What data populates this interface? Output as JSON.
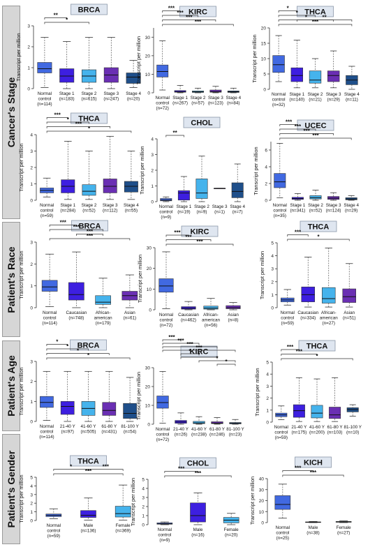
{
  "sections": [
    "Cancer's Stage",
    "Patient's Race",
    "Patient's Age",
    "Patient's Gender"
  ],
  "ylabel": "Transcript per million",
  "colors": {
    "normal": "#4169e1",
    "g1": "#3d1fe0",
    "g2": "#45b3ec",
    "g3": "#6a2fb3",
    "g4": "#1f4f8a",
    "g5": "#2a65a8",
    "white_lead": "#ffffff"
  },
  "chart_data": [
    {
      "type": "box",
      "title": "BRCA",
      "ylim": [
        0,
        3
      ],
      "yticks": [
        "0",
        "1",
        "2",
        "3"
      ],
      "categories": [
        [
          "Normal",
          "control",
          "(n=114)"
        ],
        [
          "Stage 1",
          "(n=183)"
        ],
        [
          "Stage 2",
          "(n=615)"
        ],
        [
          "Stage 3",
          "(n=247)"
        ],
        [
          "Stage 4",
          "(n=20)"
        ]
      ],
      "boxes": [
        [
          0.05,
          0.75,
          0.95,
          1.25,
          2.45
        ],
        [
          0.0,
          0.3,
          0.6,
          0.95,
          2.25
        ],
        [
          0.0,
          0.3,
          0.6,
          0.9,
          2.45
        ],
        [
          0.0,
          0.3,
          0.65,
          1.0,
          2.45
        ],
        [
          0.05,
          0.25,
          0.55,
          0.75,
          1.35
        ]
      ],
      "annotations": [
        "**",
        "*"
      ]
    },
    {
      "type": "box",
      "title": "KIRC",
      "ylim": [
        0,
        35
      ],
      "yticks": [
        "0",
        "10",
        "20",
        "30"
      ],
      "categories": [
        [
          "Normal",
          "control",
          "(n=72)"
        ],
        [
          "Stage 1",
          "(n=267)"
        ],
        [
          "Stage 2",
          "(n=57)"
        ],
        [
          "Stage 3",
          "(n=123)"
        ],
        [
          "Stage 4",
          "(n=84)"
        ]
      ],
      "boxes": [
        [
          1.5,
          8.5,
          11.5,
          15,
          28
        ],
        [
          0,
          0.3,
          0.6,
          1.2,
          4
        ],
        [
          0,
          0.2,
          0.5,
          1.0,
          2.5
        ],
        [
          0,
          0.3,
          0.6,
          1.5,
          3.5
        ],
        [
          0,
          0.2,
          0.5,
          1.0,
          2.5
        ]
      ],
      "annotations": [
        "***",
        "***",
        "***",
        "***"
      ]
    },
    {
      "type": "box",
      "title": "THCA",
      "ylim": [
        0,
        20
      ],
      "yticks": [
        "0",
        "5",
        "10",
        "15",
        "20"
      ],
      "categories": [
        [
          "Normal",
          "control",
          "(n=32)"
        ],
        [
          "Stage 1",
          "(n=140)"
        ],
        [
          "Stage 2",
          "(n=21)"
        ],
        [
          "Stage 3",
          "(n=29)"
        ],
        [
          "Stage 4",
          "(n=11)"
        ]
      ],
      "boxes": [
        [
          2.5,
          5.5,
          8,
          11,
          17.5
        ],
        [
          0.5,
          2.5,
          4.5,
          7,
          16
        ],
        [
          0.5,
          2,
          3,
          6,
          10
        ],
        [
          0.5,
          2.5,
          4.5,
          6,
          12.5
        ],
        [
          0,
          1.5,
          3,
          4.5,
          7.5
        ]
      ],
      "annotations": [
        "*",
        "*",
        "*",
        "**",
        "***"
      ]
    },
    {
      "type": "box",
      "title": "THCA",
      "ylim": [
        0,
        4
      ],
      "yticks": [
        "0",
        "1",
        "2",
        "3",
        "4"
      ],
      "categories": [
        [
          "Normal",
          "control",
          "(n=59)"
        ],
        [
          "Stage 1",
          "(n=284)"
        ],
        [
          "Stage 2",
          "(n=52)"
        ],
        [
          "Stage 3",
          "(n=112)"
        ],
        [
          "Stage 4",
          "(n=55)"
        ]
      ],
      "boxes": [
        [
          0.2,
          0.45,
          0.6,
          0.75,
          1.35
        ],
        [
          0.05,
          0.45,
          0.85,
          1.25,
          3.6
        ],
        [
          0.05,
          0.3,
          0.55,
          0.95,
          3.0
        ],
        [
          0.05,
          0.45,
          0.85,
          1.3,
          3.9
        ],
        [
          0.05,
          0.5,
          0.85,
          1.15,
          3.0
        ]
      ],
      "annotations": [
        "***",
        "*",
        "***",
        "*"
      ]
    },
    {
      "type": "box",
      "title": "CHOL",
      "ylim": [
        0,
        4
      ],
      "yticks": [
        "0",
        "1",
        "2",
        "3",
        "4"
      ],
      "categories": [
        [
          "Normal",
          "control",
          "(n=9)"
        ],
        [
          "Stage 1",
          "(n=19)"
        ],
        [
          "Stage 2",
          "(n=9)"
        ],
        [
          "Stage 3",
          "(n=1)"
        ],
        [
          "Stage 4",
          "(n=7)"
        ]
      ],
      "boxes": [
        [
          0,
          0.05,
          0.1,
          0.2,
          0.3
        ],
        [
          0,
          0.1,
          0.55,
          0.7,
          1.6
        ],
        [
          0,
          0.2,
          0.55,
          1.45,
          2.9
        ],
        [
          0.85,
          0.85,
          0.85,
          0.85,
          0.85
        ],
        [
          0,
          0.25,
          0.65,
          1.2,
          2.4
        ]
      ],
      "annotations": [
        "**"
      ]
    },
    {
      "type": "box",
      "title": "UCEC",
      "ylim": [
        0,
        7
      ],
      "yticks": [
        "0",
        "2",
        "4",
        "6"
      ],
      "categories": [
        [
          "Normal",
          "control",
          "(n=35)"
        ],
        [
          "Stage 1",
          "(n=341)"
        ],
        [
          "Stage 2",
          "(n=52)"
        ],
        [
          "Stage 3",
          "(n=124)"
        ],
        [
          "Stage 4",
          "(n=29)"
        ]
      ],
      "boxes": [
        [
          0.3,
          1.5,
          2.2,
          3.2,
          6.8
        ],
        [
          0,
          0.1,
          0.2,
          0.35,
          0.8
        ],
        [
          0,
          0.15,
          0.3,
          0.55,
          1.2
        ],
        [
          0,
          0.1,
          0.25,
          0.45,
          0.9
        ],
        [
          0,
          0.05,
          0.15,
          0.3,
          0.55
        ]
      ],
      "annotations": [
        "***",
        "***",
        "***",
        "***"
      ]
    },
    {
      "type": "box",
      "title": "BRCA",
      "ylim": [
        0,
        3
      ],
      "yticks": [
        "0",
        "1",
        "2",
        "3"
      ],
      "categories": [
        [
          "Normal",
          "control",
          "(n=114)"
        ],
        [
          "Caucasian",
          "(n=748)"
        ],
        [
          "African-",
          "american",
          "(n=179)"
        ],
        [
          "Asian",
          "(n=61)"
        ]
      ],
      "boxes": [
        [
          0.05,
          0.75,
          0.95,
          1.25,
          2.45
        ],
        [
          0,
          0.35,
          0.6,
          1.15,
          2.55
        ],
        [
          0,
          0.15,
          0.25,
          0.55,
          1.35
        ],
        [
          0,
          0.35,
          0.55,
          0.75,
          1.5
        ]
      ],
      "annotations": [
        "***",
        "***",
        "***",
        "***"
      ]
    },
    {
      "type": "box",
      "title": "KIRC",
      "ylim": [
        0,
        30
      ],
      "yticks": [
        "0",
        "10",
        "20",
        "30"
      ],
      "categories": [
        [
          "Normal",
          "control",
          "(n=72)"
        ],
        [
          "Caucasian",
          "(n=462)"
        ],
        [
          "African-",
          "american",
          "(n=56)"
        ],
        [
          "Asian",
          "(n=8)"
        ]
      ],
      "boxes": [
        [
          0.5,
          8.5,
          11.5,
          15,
          28
        ],
        [
          0,
          0.3,
          0.8,
          1.5,
          4
        ],
        [
          0,
          0.3,
          0.8,
          1.8,
          5.5
        ],
        [
          0,
          0.5,
          1.0,
          2.0,
          3.5
        ]
      ],
      "annotations": [
        "***",
        "***",
        "***"
      ]
    },
    {
      "type": "box",
      "title": "THCA",
      "ylim": [
        0,
        5
      ],
      "yticks": [
        "0",
        "1",
        "2",
        "3",
        "4",
        "5"
      ],
      "categories": [
        [
          "Normal",
          "control",
          "(n=59)"
        ],
        [
          "Caucasian",
          "(n=334)"
        ],
        [
          "African-",
          "american",
          "(n=27)"
        ],
        [
          "Asian",
          "(n=51)"
        ]
      ],
      "boxes": [
        [
          0.2,
          0.45,
          0.6,
          0.75,
          1.4
        ],
        [
          0.05,
          0.45,
          1.0,
          1.6,
          3.9
        ],
        [
          0.05,
          0.35,
          0.7,
          1.55,
          4.6
        ],
        [
          0.05,
          0.4,
          0.85,
          1.45,
          3.4
        ]
      ],
      "annotations": [
        "***",
        "*"
      ]
    },
    {
      "type": "box",
      "title": "BRCA",
      "ylim": [
        0,
        3
      ],
      "yticks": [
        "0",
        "1",
        "2",
        "3"
      ],
      "categories": [
        [
          "Normal",
          "control",
          "(n=114)"
        ],
        [
          "21-40 Y",
          "(n=97)"
        ],
        [
          "41-60 Y",
          "(n=505)"
        ],
        [
          "61-80 Y",
          "(n=431)"
        ],
        [
          "81-100 Y",
          "(n=54)"
        ]
      ],
      "boxes": [
        [
          0.05,
          0.7,
          0.95,
          1.25,
          2.5
        ],
        [
          0,
          0.35,
          0.75,
          1.0,
          2.5
        ],
        [
          0,
          0.3,
          0.65,
          1.0,
          2.5
        ],
        [
          0,
          0.3,
          0.55,
          0.95,
          2.5
        ],
        [
          0,
          0.15,
          0.4,
          0.9,
          2.2
        ]
      ],
      "annotations": [
        "*",
        "*",
        "*",
        "*"
      ]
    },
    {
      "type": "box",
      "title": "KIRC",
      "ylim": [
        0,
        30
      ],
      "yticks": [
        "0",
        "10",
        "20",
        "30"
      ],
      "categories": [
        [
          "Normal",
          "control",
          "(n=72)"
        ],
        [
          "21-40 Y",
          "(n=26)"
        ],
        [
          "41-60 Y",
          "(n=238)"
        ],
        [
          "61-80 Y",
          "(n=246)"
        ],
        [
          "81-100 Y",
          "(n=23)"
        ]
      ],
      "boxes": [
        [
          0.5,
          8.5,
          11.5,
          15,
          28
        ],
        [
          0,
          0.5,
          1.2,
          2.0,
          6
        ],
        [
          0,
          0.3,
          0.7,
          1.5,
          4
        ],
        [
          0,
          0.3,
          0.6,
          1.3,
          3.5
        ],
        [
          0,
          0.2,
          0.4,
          0.9,
          2.5
        ]
      ],
      "annotations": [
        "***",
        "***",
        "***",
        "***",
        "*",
        "*",
        "*",
        "*"
      ]
    },
    {
      "type": "box",
      "title": "THCA",
      "ylim": [
        0,
        5
      ],
      "yticks": [
        "0",
        "1",
        "2",
        "3",
        "4",
        "5"
      ],
      "categories": [
        [
          "Normal",
          "control",
          "(n=59)"
        ],
        [
          "21-40 Y",
          "(n=175)"
        ],
        [
          "41-60 Y",
          "(n=200)"
        ],
        [
          "61-80 Y",
          "(n=103)"
        ],
        [
          "81-100 Y",
          "(n=10)"
        ]
      ],
      "boxes": [
        [
          0.2,
          0.45,
          0.6,
          0.75,
          1.35
        ],
        [
          0.05,
          0.4,
          0.95,
          1.45,
          3.7
        ],
        [
          0.05,
          0.35,
          0.75,
          1.4,
          3.6
        ],
        [
          0.05,
          0.3,
          0.6,
          1.25,
          3.7
        ],
        [
          0.5,
          0.85,
          1.05,
          1.2,
          1.45
        ]
      ],
      "annotations": [
        "***",
        "***",
        "*"
      ]
    },
    {
      "type": "box",
      "title": "THCA",
      "ylim": [
        0,
        5
      ],
      "yticks": [
        "0",
        "1",
        "2",
        "3",
        "4",
        "5"
      ],
      "categories": [
        [
          "Normal",
          "control",
          "(n=59)"
        ],
        [
          "Male",
          "(n=136)"
        ],
        [
          "Female",
          "(n=369)"
        ]
      ],
      "boxes": [
        [
          0.2,
          0.45,
          0.6,
          0.75,
          1.35
        ],
        [
          0.05,
          0.35,
          0.6,
          1.15,
          2.6
        ],
        [
          0.05,
          0.4,
          0.8,
          1.65,
          4.1
        ]
      ],
      "annotations": [
        "*",
        "***",
        "***"
      ]
    },
    {
      "type": "box",
      "title": "CHOL",
      "ylim": [
        0,
        5
      ],
      "yticks": [
        "0",
        "1",
        "2",
        "3",
        "4",
        "5"
      ],
      "categories": [
        [
          "Normal",
          "control",
          "(n=9)"
        ],
        [
          "Male",
          "(n=16)"
        ],
        [
          "Female",
          "(n=20)"
        ]
      ],
      "boxes": [
        [
          0,
          0.05,
          0.1,
          0.2,
          0.3
        ],
        [
          0,
          0.3,
          1.0,
          2.4,
          3.5
        ],
        [
          0,
          0.2,
          0.5,
          0.8,
          1.25
        ]
      ],
      "annotations": [
        "***",
        "***"
      ]
    },
    {
      "type": "box",
      "title": "KICH",
      "ylim": [
        0,
        40
      ],
      "yticks": [
        "0",
        "10",
        "20",
        "30",
        "40"
      ],
      "categories": [
        [
          "Normal",
          "control",
          "(n=25)"
        ],
        [
          "Male",
          "(n=38)"
        ],
        [
          "Female",
          "(n=27)"
        ]
      ],
      "boxes": [
        [
          4,
          12,
          16.5,
          24.5,
          35
        ],
        [
          0,
          0.2,
          0.4,
          0.6,
          1
        ],
        [
          0,
          0.3,
          0.6,
          1.0,
          1.5
        ]
      ],
      "annotations": [
        "***",
        "***"
      ]
    }
  ]
}
